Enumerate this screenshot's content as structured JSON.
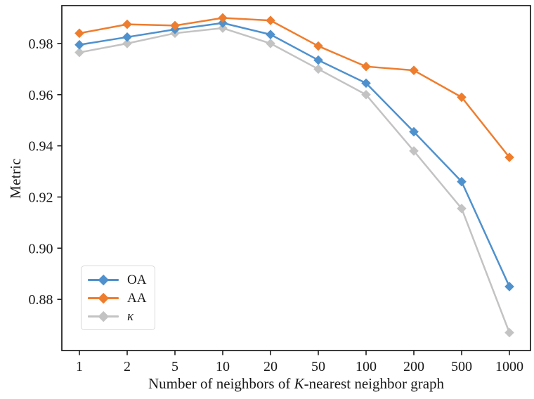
{
  "chart_data": {
    "type": "line",
    "title": "",
    "xlabel": "Number of neighbors of K-nearest neighbor graph",
    "xlabel_parts": [
      "Number of neighbors of ",
      "K",
      "-nearest neighbor graph"
    ],
    "ylabel": "Metric",
    "categories": [
      1,
      2,
      5,
      10,
      20,
      50,
      100,
      200,
      500,
      1000
    ],
    "xtick_labels": [
      "1",
      "2",
      "5",
      "10",
      "20",
      "50",
      "100",
      "200",
      "500",
      "1000"
    ],
    "x_scale": "categorical-log-spaced",
    "series": [
      {
        "name": "OA",
        "color": "#4F91CD",
        "marker": "diamond",
        "italic": false,
        "values": [
          0.9795,
          0.9825,
          0.9855,
          0.988,
          0.9835,
          0.9735,
          0.9645,
          0.9455,
          0.926,
          0.885
        ]
      },
      {
        "name": "AA",
        "color": "#EE7D2E",
        "marker": "diamond",
        "italic": false,
        "values": [
          0.984,
          0.9875,
          0.987,
          0.99,
          0.989,
          0.979,
          0.971,
          0.9695,
          0.959,
          0.9355
        ]
      },
      {
        "name": "κ",
        "color": "#C3C3C3",
        "marker": "diamond",
        "italic": true,
        "values": [
          0.9765,
          0.98,
          0.984,
          0.986,
          0.98,
          0.97,
          0.96,
          0.938,
          0.9155,
          0.867
        ]
      }
    ],
    "yticks": [
      0.88,
      0.9,
      0.92,
      0.94,
      0.96,
      0.98
    ],
    "ytick_labels": [
      "0.88",
      "0.90",
      "0.92",
      "0.94",
      "0.96",
      "0.98"
    ],
    "ylim": [
      0.86,
      0.9948
    ],
    "grid": false,
    "legend_position": "lower left",
    "axis_color": "#1a1a1a"
  }
}
